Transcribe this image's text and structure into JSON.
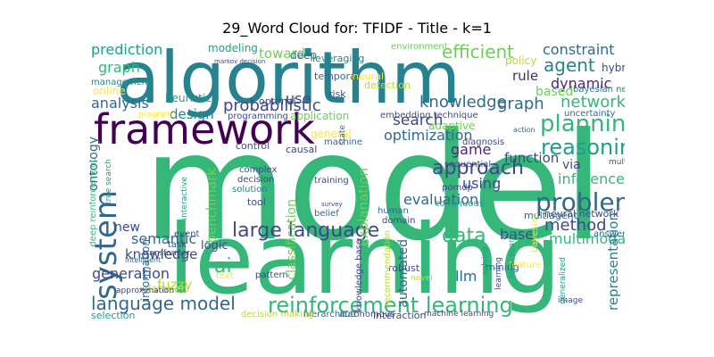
{
  "title": "29_Word Cloud for: TFIDF - Title - k=1",
  "colors": {
    "yellow": "#fde725",
    "lime": "#b5de2b",
    "lightgreen": "#6ece58",
    "green": "#35b779",
    "teal": "#1f9e89",
    "cyan": "#26828e",
    "blue": "#31688e",
    "indigo": "#3e4989",
    "violet": "#482878",
    "dark": "#440154"
  },
  "words": [
    {
      "text": "model",
      "color": "green"
    },
    {
      "text": "learning",
      "color": "green"
    },
    {
      "text": "algorithm",
      "color": "cyan"
    },
    {
      "text": "framework",
      "color": "dark"
    },
    {
      "text": "reinforcement learning",
      "color": "green"
    },
    {
      "text": "language model",
      "color": "blue"
    },
    {
      "text": "large language",
      "color": "indigo"
    },
    {
      "text": "planning",
      "color": "green"
    },
    {
      "text": "reasoning",
      "color": "teal"
    },
    {
      "text": "problem",
      "color": "blue"
    },
    {
      "text": "approach",
      "color": "indigo"
    },
    {
      "text": "network",
      "color": "green"
    },
    {
      "text": "agent",
      "color": "cyan"
    },
    {
      "text": "system",
      "color": "blue"
    },
    {
      "text": "probabilistic",
      "color": "indigo"
    },
    {
      "text": "knowledge",
      "color": "blue"
    },
    {
      "text": "graph",
      "color": "blue"
    },
    {
      "text": "efficient",
      "color": "lightgreen"
    },
    {
      "text": "constraint",
      "color": "blue"
    },
    {
      "text": "prediction",
      "color": "teal"
    },
    {
      "text": "optimization",
      "color": "blue"
    },
    {
      "text": "data",
      "color": "green"
    },
    {
      "text": "ai",
      "color": "green"
    },
    {
      "text": "method",
      "color": "indigo"
    },
    {
      "text": "search",
      "color": "indigo"
    },
    {
      "text": "semantic",
      "color": "blue"
    },
    {
      "text": "generation",
      "color": "indigo"
    },
    {
      "text": "dynamic",
      "color": "violet"
    },
    {
      "text": "function",
      "color": "indigo"
    },
    {
      "text": "inference",
      "color": "green"
    },
    {
      "text": "game",
      "color": "violet"
    },
    {
      "text": "using",
      "color": "indigo"
    },
    {
      "text": "evaluation",
      "color": "blue"
    },
    {
      "text": "explanation",
      "color": "lightgreen"
    },
    {
      "text": "benchmark",
      "color": "lightgreen"
    },
    {
      "text": "ontology",
      "color": "blue"
    },
    {
      "text": "classification",
      "color": "lightgreen"
    },
    {
      "text": "multimodal",
      "color": "green"
    },
    {
      "text": "representation",
      "color": "cyan"
    },
    {
      "text": "analysis",
      "color": "blue"
    },
    {
      "text": "design",
      "color": "cyan"
    },
    {
      "text": "toward",
      "color": "lightgreen"
    },
    {
      "text": "graph",
      "color": "green"
    },
    {
      "text": "base",
      "color": "indigo"
    },
    {
      "text": "fuzzy",
      "color": "lime"
    },
    {
      "text": "knowledge",
      "color": "indigo"
    },
    {
      "text": "use",
      "color": "indigo"
    },
    {
      "text": "via",
      "color": "indigo"
    },
    {
      "text": "llm",
      "color": "blue"
    },
    {
      "text": "automated",
      "color": "blue"
    },
    {
      "text": "rule",
      "color": "violet"
    },
    {
      "text": "based",
      "color": "lightgreen"
    },
    {
      "text": "hybrid",
      "color": "indigo"
    },
    {
      "text": "policy",
      "color": "lime"
    },
    {
      "text": "new",
      "color": "indigo"
    },
    {
      "text": "heuristic",
      "color": "teal"
    },
    {
      "text": "logic",
      "color": "indigo"
    },
    {
      "text": "online",
      "color": "yellow"
    },
    {
      "text": "modeling",
      "color": "teal"
    },
    {
      "text": "deep",
      "color": "blue"
    },
    {
      "text": "leveraging",
      "color": "cyan"
    },
    {
      "text": "neural network",
      "color": "indigo"
    },
    {
      "text": "multiagent",
      "color": "blue"
    },
    {
      "text": "information",
      "color": "blue"
    },
    {
      "text": "task",
      "color": "indigo"
    },
    {
      "text": "dataset",
      "color": "lime"
    },
    {
      "text": "mining",
      "color": "blue"
    },
    {
      "text": "management",
      "color": "cyan"
    },
    {
      "text": "uncertainty",
      "color": "blue"
    },
    {
      "text": "bayesian network",
      "color": "cyan"
    },
    {
      "text": "embedding technique",
      "color": "indigo"
    },
    {
      "text": "adaptive",
      "color": "lightgreen"
    },
    {
      "text": "application",
      "color": "lightgreen"
    },
    {
      "text": "general",
      "color": "yellow"
    },
    {
      "text": "optimal",
      "color": "indigo"
    },
    {
      "text": "programming",
      "color": "indigo"
    },
    {
      "text": "temporal",
      "color": "blue"
    },
    {
      "text": "neural",
      "color": "yellow"
    },
    {
      "text": "detection",
      "color": "lime"
    },
    {
      "text": "risk",
      "color": "indigo"
    },
    {
      "text": "environment",
      "color": "lightgreen"
    },
    {
      "text": "diagnosis",
      "color": "indigo"
    },
    {
      "text": "machine",
      "color": "blue"
    },
    {
      "text": "causal",
      "color": "indigo"
    },
    {
      "text": "deep reinforcement",
      "color": "green"
    },
    {
      "text": "tree search",
      "color": "teal"
    },
    {
      "text": "interactive",
      "color": "teal"
    },
    {
      "text": "control",
      "color": "indigo"
    },
    {
      "text": "complex",
      "color": "indigo"
    },
    {
      "text": "decision",
      "color": "indigo"
    },
    {
      "text": "solution",
      "color": "cyan"
    },
    {
      "text": "tool",
      "color": "indigo"
    },
    {
      "text": "training",
      "color": "indigo"
    },
    {
      "text": "belief",
      "color": "blue"
    },
    {
      "text": "sequential",
      "color": "indigo"
    },
    {
      "text": "pomdp",
      "color": "indigo"
    },
    {
      "text": "continuous",
      "color": "teal"
    },
    {
      "text": "human",
      "color": "blue"
    },
    {
      "text": "domain",
      "color": "indigo"
    },
    {
      "text": "robust",
      "color": "indigo"
    },
    {
      "text": "recommendation",
      "color": "lime"
    },
    {
      "text": "knowledge base",
      "color": "indigo"
    },
    {
      "text": "interaction",
      "color": "indigo"
    },
    {
      "text": "machine learning",
      "color": "indigo"
    },
    {
      "text": "autonomous",
      "color": "indigo"
    },
    {
      "text": "hierarchical",
      "color": "blue"
    },
    {
      "text": "decision making",
      "color": "lime"
    },
    {
      "text": "pattern",
      "color": "indigo"
    },
    {
      "text": "selection",
      "color": "teal"
    },
    {
      "text": "approximation",
      "color": "indigo"
    },
    {
      "text": "intelligent",
      "color": "blue"
    },
    {
      "text": "transformer",
      "color": "indigo"
    },
    {
      "text": "event",
      "color": "indigo"
    },
    {
      "text": "text",
      "color": "yellow"
    },
    {
      "text": "novel",
      "color": "lime"
    },
    {
      "text": "feature",
      "color": "yellow"
    },
    {
      "text": "answer set",
      "color": "blue"
    },
    {
      "text": "multiple",
      "color": "indigo"
    },
    {
      "text": "local search",
      "color": "teal"
    },
    {
      "text": "generalized",
      "color": "teal"
    },
    {
      "text": "image",
      "color": "indigo"
    },
    {
      "text": "solving",
      "color": "teal"
    },
    {
      "text": "program",
      "color": "yellow"
    },
    {
      "text": "markov decision",
      "color": "indigo"
    },
    {
      "text": "state",
      "color": "blue"
    },
    {
      "text": "bayesian",
      "color": "yellow"
    },
    {
      "text": "action",
      "color": "blue"
    },
    {
      "text": "learning",
      "color": "indigo"
    },
    {
      "text": "survey",
      "color": "indigo"
    }
  ]
}
